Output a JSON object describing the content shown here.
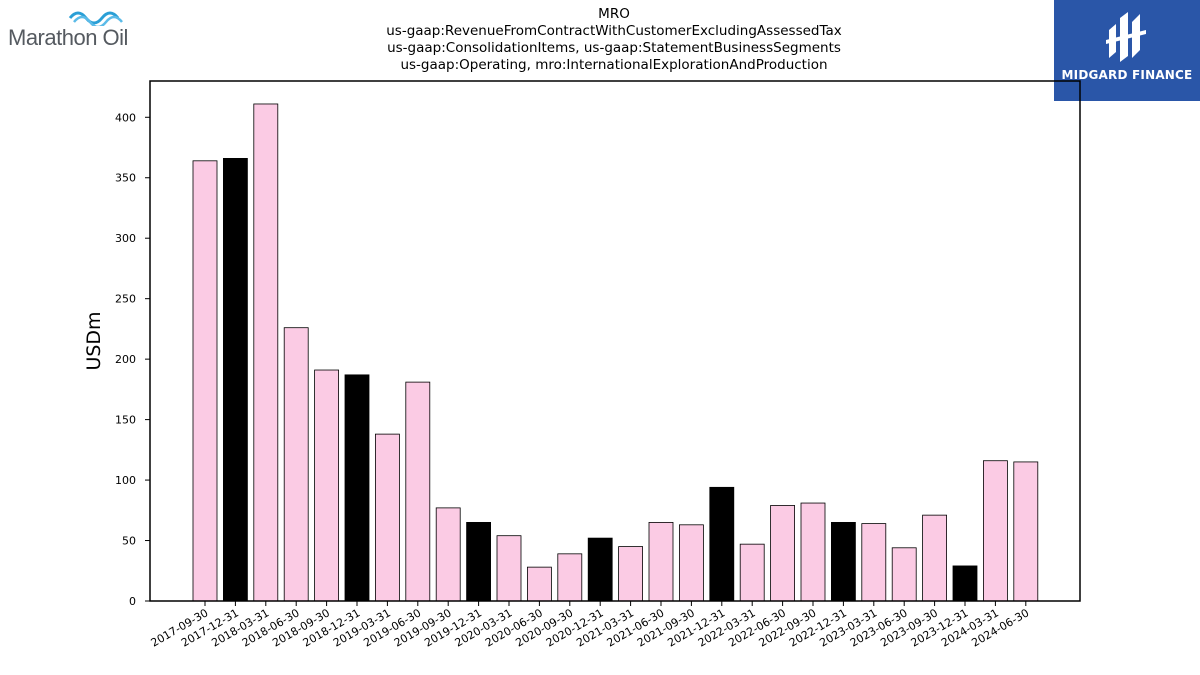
{
  "logos": {
    "left_text": "Marathon Oil",
    "right_text": "MIDGARD FINANCE",
    "right_bg": "#2a56a8",
    "left_wave_color": "#2a9fd6"
  },
  "title_lines": [
    "MRO",
    "us-gaap:RevenueFromContractWithCustomerExcludingAssessedTax",
    "us-gaap:ConsolidationItems, us-gaap:StatementBusinessSegments",
    "us-gaap:Operating, mro:InternationalExplorationAndProduction"
  ],
  "chart_data": {
    "type": "bar",
    "title": "MRO",
    "ylabel": "USDm",
    "xlabel": "",
    "ylim": [
      0,
      430
    ],
    "yticks": [
      0,
      50,
      100,
      150,
      200,
      250,
      300,
      350,
      400
    ],
    "grid": false,
    "colors": {
      "quarter": "#fbcbe4",
      "year_end": "#000000",
      "edge": "#000000"
    },
    "categories": [
      "2017-09-30",
      "2017-12-31",
      "2018-03-31",
      "2018-06-30",
      "2018-09-30",
      "2018-12-31",
      "2019-03-31",
      "2019-06-30",
      "2019-09-30",
      "2019-12-31",
      "2020-03-31",
      "2020-06-30",
      "2020-09-30",
      "2020-12-31",
      "2021-03-31",
      "2021-06-30",
      "2021-09-30",
      "2021-12-31",
      "2022-03-31",
      "2022-06-30",
      "2022-09-30",
      "2022-12-31",
      "2023-03-31",
      "2023-06-30",
      "2023-09-30",
      "2023-12-31",
      "2024-03-31",
      "2024-06-30"
    ],
    "values": [
      364,
      366,
      411,
      226,
      191,
      187,
      138,
      181,
      77,
      65,
      54,
      28,
      39,
      52,
      45,
      65,
      63,
      94,
      47,
      79,
      81,
      65,
      64,
      44,
      71,
      29,
      116,
      115
    ]
  }
}
